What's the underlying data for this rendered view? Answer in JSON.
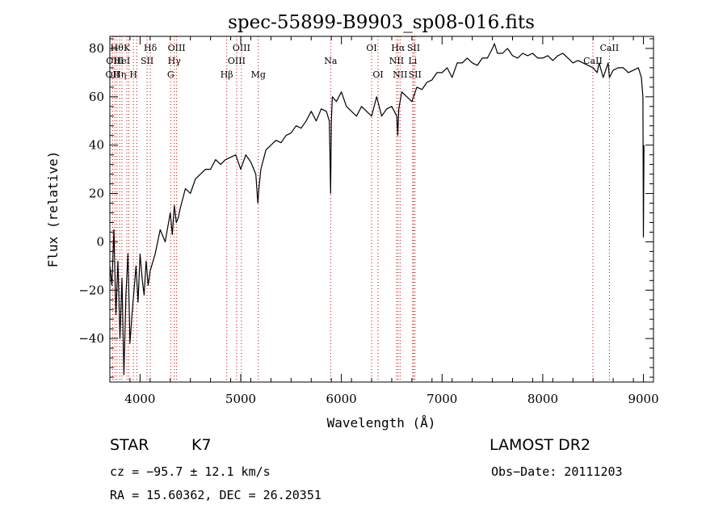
{
  "chart_data": {
    "type": "line",
    "title": "spec-55899-B9903_sp08-016.fits",
    "xlabel": "Wavelength (Å)",
    "ylabel": "Flux (relative)",
    "xlim": [
      3700,
      9100
    ],
    "ylim": [
      -58,
      85
    ],
    "x_ticks": [
      4000,
      5000,
      6000,
      7000,
      8000,
      9000
    ],
    "y_ticks": [
      -40,
      -20,
      0,
      20,
      40,
      60,
      80
    ],
    "grid": false,
    "series": [
      {
        "x": [
          3700,
          3720,
          3740,
          3760,
          3780,
          3800,
          3820,
          3840,
          3860,
          3880,
          3900,
          3920,
          3940,
          3960,
          3980,
          4000,
          4020,
          4040,
          4060,
          4080,
          4100,
          4150,
          4200,
          4250,
          4300,
          4320,
          4340,
          4360,
          4380,
          4400,
          4450,
          4500,
          4550,
          4600,
          4650,
          4700,
          4750,
          4800,
          4850,
          4900,
          4950,
          5000,
          5050,
          5100,
          5150,
          5170,
          5180,
          5200,
          5250,
          5300,
          5350,
          5400,
          5450,
          5500,
          5550,
          5600,
          5650,
          5700,
          5750,
          5800,
          5850,
          5880,
          5893,
          5900,
          5910,
          5950,
          6000,
          6050,
          6100,
          6150,
          6200,
          6250,
          6300,
          6350,
          6400,
          6450,
          6500,
          6550,
          6560,
          6570,
          6600,
          6650,
          6700,
          6750,
          6800,
          6850,
          6900,
          6950,
          7000,
          7050,
          7100,
          7150,
          7200,
          7250,
          7300,
          7350,
          7400,
          7450,
          7500,
          7520,
          7550,
          7600,
          7650,
          7700,
          7750,
          7800,
          7850,
          7900,
          7950,
          8000,
          8050,
          8100,
          8150,
          8200,
          8250,
          8300,
          8350,
          8400,
          8450,
          8500,
          8540,
          8560,
          8600,
          8650,
          8662,
          8700,
          8750,
          8800,
          8850,
          8900,
          8950,
          8980,
          8995,
          9000,
          9005
        ],
        "y": [
          -10,
          -18,
          5,
          -30,
          -8,
          -40,
          -15,
          -55,
          -22,
          -5,
          -42,
          -30,
          -20,
          -10,
          -25,
          -5,
          -15,
          -22,
          -8,
          -18,
          -12,
          -5,
          5,
          0,
          12,
          3,
          15,
          8,
          10,
          14,
          22,
          20,
          26,
          28,
          30,
          30,
          34,
          32,
          34,
          35,
          36,
          30,
          36,
          33,
          28,
          16,
          22,
          30,
          38,
          40,
          42,
          41,
          44,
          45,
          48,
          47,
          50,
          54,
          50,
          55,
          54,
          50,
          20,
          50,
          60,
          58,
          62,
          56,
          54,
          52,
          56,
          54,
          52,
          60,
          52,
          55,
          56,
          52,
          44,
          55,
          62,
          60,
          58,
          64,
          63,
          66,
          67,
          70,
          70,
          72,
          68,
          74,
          74,
          76,
          74,
          73,
          76,
          76,
          80,
          82,
          78,
          78,
          80,
          77,
          76,
          78,
          77,
          78,
          76,
          76,
          77,
          75,
          77,
          78,
          76,
          74,
          75,
          74,
          73,
          72,
          70,
          74,
          68,
          74,
          68,
          71,
          72,
          72,
          70,
          71,
          72,
          68,
          60,
          2,
          40
        ]
      }
    ],
    "lines": [
      {
        "w": 3727,
        "label": "OII",
        "row": 2
      },
      {
        "w": 3750,
        "label": "OIII",
        "row": 1
      },
      {
        "w": 3770,
        "label": "Hθ",
        "row": 0
      },
      {
        "w": 3798,
        "label": "Hη",
        "row": 2
      },
      {
        "w": 3820,
        "label": "HeI",
        "row": 1
      },
      {
        "w": 3869,
        "label": "K",
        "row": 0
      },
      {
        "w": 3889,
        "label": "",
        "row": 1
      },
      {
        "w": 3934,
        "label": "H",
        "row": 2
      },
      {
        "w": 3968,
        "label": "",
        "row": 2
      },
      {
        "w": 4070,
        "label": "SII",
        "row": 1
      },
      {
        "w": 4102,
        "label": "Hδ",
        "row": 0
      },
      {
        "w": 4304,
        "label": "G",
        "row": 2
      },
      {
        "w": 4340,
        "label": "Hγ",
        "row": 1
      },
      {
        "w": 4363,
        "label": "OIII",
        "row": 0
      },
      {
        "w": 4861,
        "label": "Hβ",
        "row": 2
      },
      {
        "w": 4959,
        "label": "OIII",
        "row": 1
      },
      {
        "w": 5007,
        "label": "OIII",
        "row": 0
      },
      {
        "w": 5175,
        "label": "Mg",
        "row": 2
      },
      {
        "w": 5893,
        "label": "Na",
        "row": 1
      },
      {
        "w": 6300,
        "label": "OI",
        "row": 0
      },
      {
        "w": 6364,
        "label": "OI",
        "row": 2
      },
      {
        "w": 6548,
        "label": "NII",
        "row": 1
      },
      {
        "w": 6563,
        "label": "Hα",
        "row": 0
      },
      {
        "w": 6583,
        "label": "NII",
        "row": 2
      },
      {
        "w": 6708,
        "label": "Li",
        "row": 1
      },
      {
        "w": 6717,
        "label": "SII",
        "row": 0
      },
      {
        "w": 6731,
        "label": "SII",
        "row": 2
      },
      {
        "w": 8498,
        "label": "CaII",
        "row": 1
      },
      {
        "w": 8662,
        "label": "CaII",
        "row": 0
      }
    ]
  },
  "footer": {
    "object_class": "STAR",
    "subclass": "K7",
    "survey": "LAMOST DR2",
    "redshift": "cz = −95.7 ± 12.1 km/s",
    "obs_date": "Obs−Date: 20111203",
    "coords": "RA =  15.60362, DEC =  26.20351"
  },
  "colors": {
    "spectrum": "#000000",
    "line_markers": "#cc0000"
  }
}
